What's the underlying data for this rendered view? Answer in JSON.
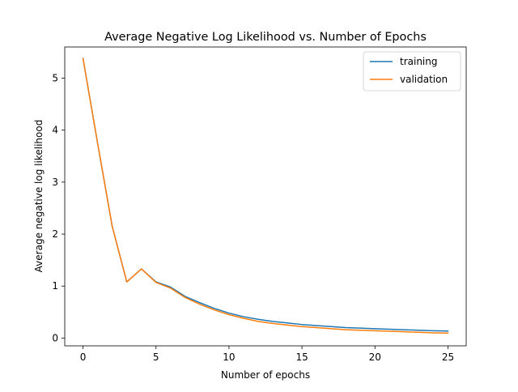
{
  "chart_data": {
    "type": "line",
    "title": "Average Negative Log Likelihood vs. Number of Epochs",
    "xlabel": "Number of epochs",
    "ylabel": "Average negative log likelihood",
    "xlim": [
      -1.25,
      26.25
    ],
    "ylim": [
      -0.15,
      5.6
    ],
    "xticks": [
      0,
      5,
      10,
      15,
      20,
      25
    ],
    "yticks": [
      0,
      1,
      2,
      3,
      4,
      5
    ],
    "grid": false,
    "legend_position": "top-right",
    "x": [
      0,
      1,
      2,
      3,
      4,
      5,
      6,
      7,
      8,
      9,
      10,
      11,
      12,
      13,
      14,
      15,
      16,
      17,
      18,
      19,
      20,
      21,
      22,
      23,
      24,
      25
    ],
    "series": [
      {
        "name": "training",
        "color": "#1f77b4",
        "values": [
          5.38,
          3.75,
          2.15,
          1.08,
          1.33,
          1.08,
          0.98,
          0.8,
          0.68,
          0.57,
          0.48,
          0.41,
          0.36,
          0.32,
          0.29,
          0.26,
          0.24,
          0.22,
          0.2,
          0.19,
          0.18,
          0.17,
          0.16,
          0.15,
          0.14,
          0.135
        ]
      },
      {
        "name": "validation",
        "color": "#ff7f0e",
        "values": [
          5.38,
          3.75,
          2.15,
          1.08,
          1.33,
          1.07,
          0.96,
          0.78,
          0.65,
          0.54,
          0.45,
          0.38,
          0.32,
          0.28,
          0.25,
          0.22,
          0.2,
          0.18,
          0.16,
          0.15,
          0.14,
          0.13,
          0.12,
          0.11,
          0.1,
          0.095
        ]
      }
    ]
  }
}
